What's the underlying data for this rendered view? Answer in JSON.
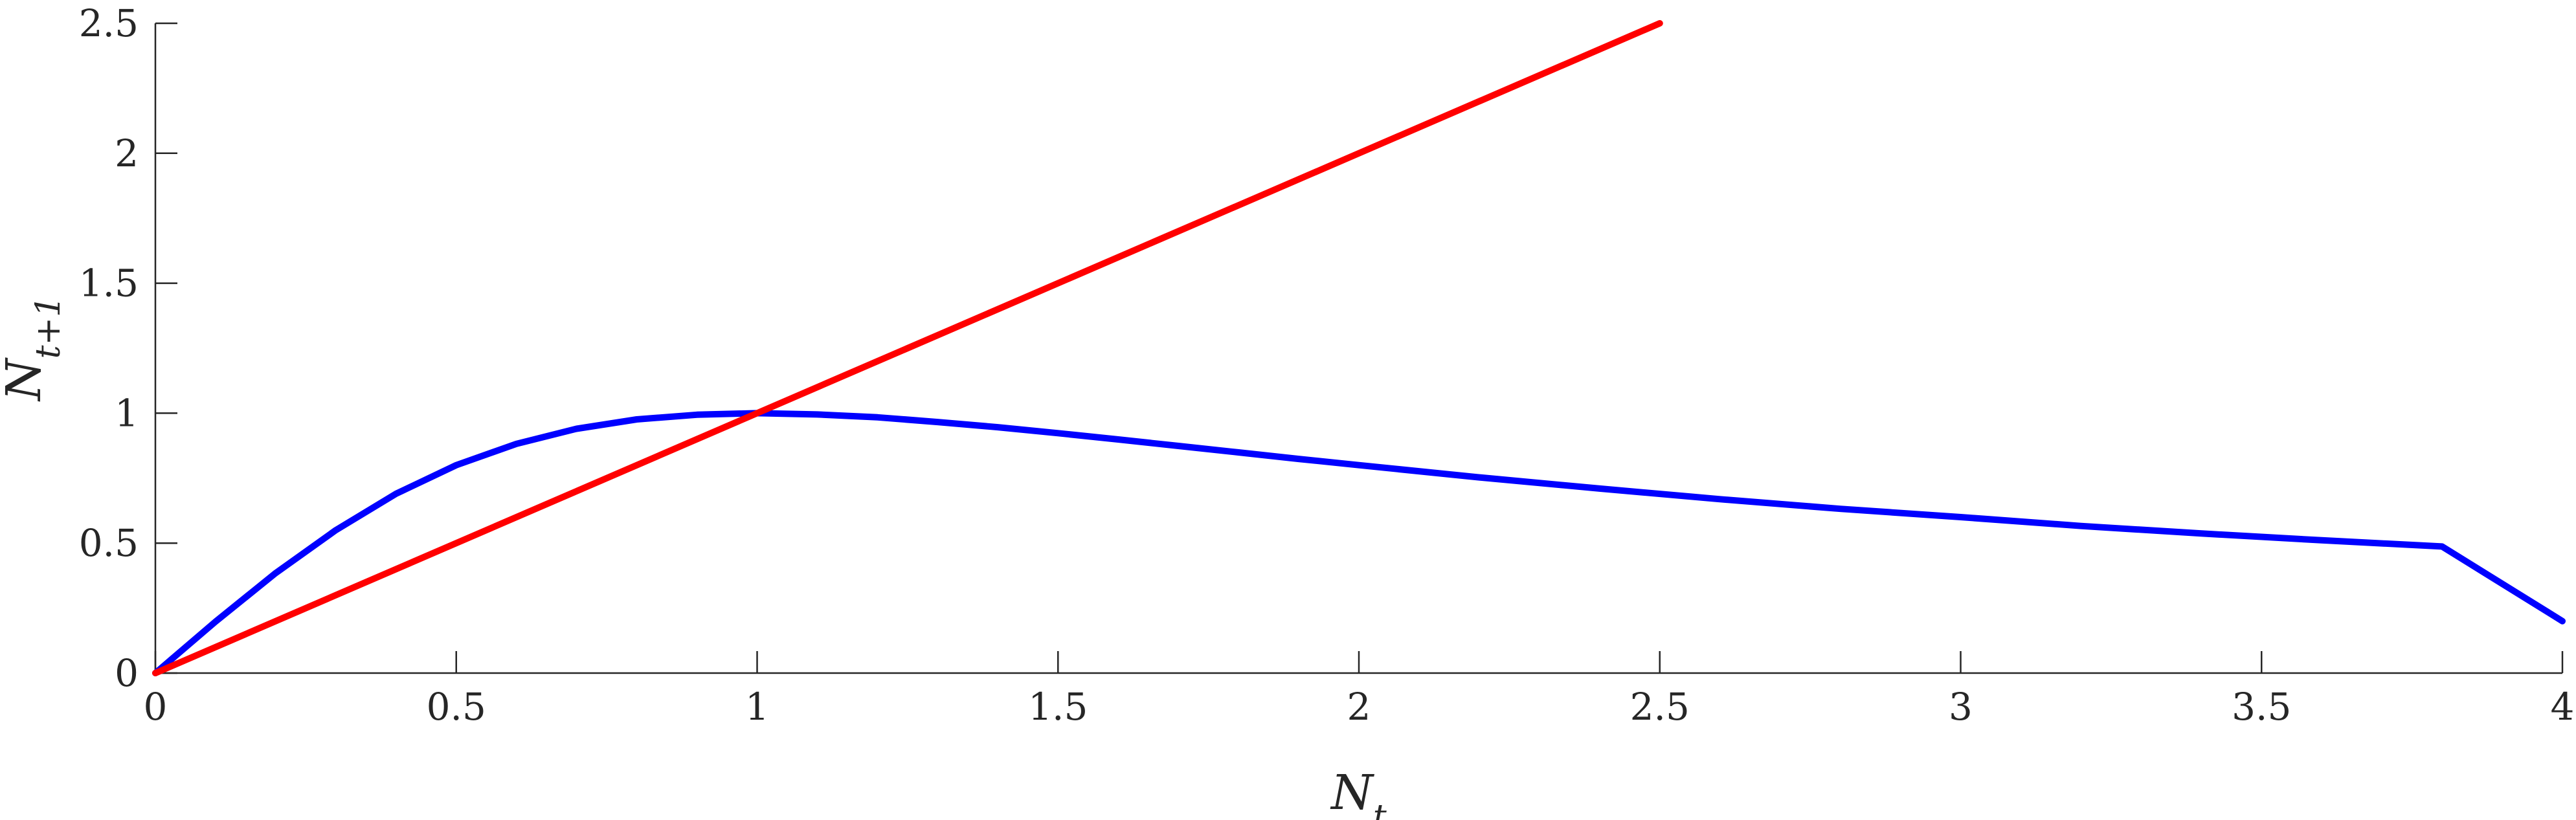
{
  "chart_data": {
    "type": "line",
    "title": "",
    "xlabel": {
      "main": "N",
      "sub": "t"
    },
    "ylabel": {
      "main": "N",
      "sub": "t+1"
    },
    "xlim": [
      0,
      4
    ],
    "ylim": [
      0,
      2.5
    ],
    "xticks": [
      0,
      0.5,
      1,
      1.5,
      2,
      2.5,
      3,
      3.5,
      4
    ],
    "xtick_labels": [
      "0",
      "0.5",
      "1",
      "1.5",
      "2",
      "2.5",
      "3",
      "3.5",
      "4"
    ],
    "yticks": [
      0,
      0.5,
      1,
      1.5,
      2,
      2.5
    ],
    "ytick_labels": [
      "0",
      "0.5",
      "1",
      "1.5",
      "2",
      "2.5"
    ],
    "grid": false,
    "series": [
      {
        "color": "#0000ff",
        "x": [
          0,
          0.1,
          0.2,
          0.3,
          0.4,
          0.5,
          0.6,
          0.7,
          0.8,
          0.9,
          1.0,
          1.1,
          1.2,
          1.3,
          1.4,
          1.5,
          1.6,
          1.7,
          1.8,
          1.9,
          2.0,
          2.2,
          2.4,
          2.6,
          2.8,
          3.0,
          3.2,
          3.4,
          3.6,
          3.8,
          4.0
        ],
        "y": [
          0,
          0.198,
          0.385,
          0.55,
          0.69,
          0.8,
          0.882,
          0.94,
          0.976,
          0.994,
          1.0,
          0.995,
          0.984,
          0.966,
          0.946,
          0.923,
          0.899,
          0.874,
          0.849,
          0.824,
          0.8,
          0.753,
          0.71,
          0.669,
          0.632,
          0.6,
          0.566,
          0.537,
          0.511,
          0.487,
          0.2
        ]
      },
      {
        "color": "#ff0000",
        "x": [
          0,
          2.5
        ],
        "y": [
          0,
          2.5
        ]
      }
    ]
  }
}
